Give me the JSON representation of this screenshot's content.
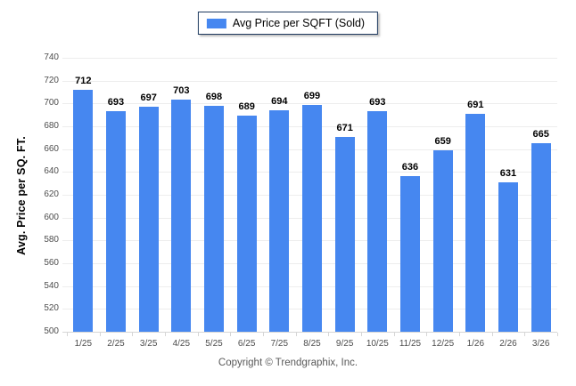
{
  "legend": {
    "label": "Avg Price per SQFT (Sold)",
    "swatch_color": "#4687f0",
    "swatch_icon": "legend-swatch-icon"
  },
  "footer": {
    "text": "Copyright © Trendgraphix, Inc."
  },
  "chart_data": {
    "type": "bar",
    "title": "",
    "categories": [
      "1/25",
      "2/25",
      "3/25",
      "4/25",
      "5/25",
      "6/25",
      "7/25",
      "8/25",
      "9/25",
      "10/25",
      "11/25",
      "12/25",
      "1/26",
      "2/26",
      "3/26"
    ],
    "values": [
      712,
      693,
      697,
      703,
      698,
      689,
      694,
      699,
      671,
      693,
      636,
      659,
      691,
      631,
      665
    ],
    "xlabel": "",
    "ylabel": "Avg. Price per SQ. FT.",
    "ylim": [
      500,
      740
    ],
    "ytick_step": 20,
    "bar_color": "#4687f0",
    "grid": true,
    "value_labels": true,
    "legend_position": "top-center"
  }
}
